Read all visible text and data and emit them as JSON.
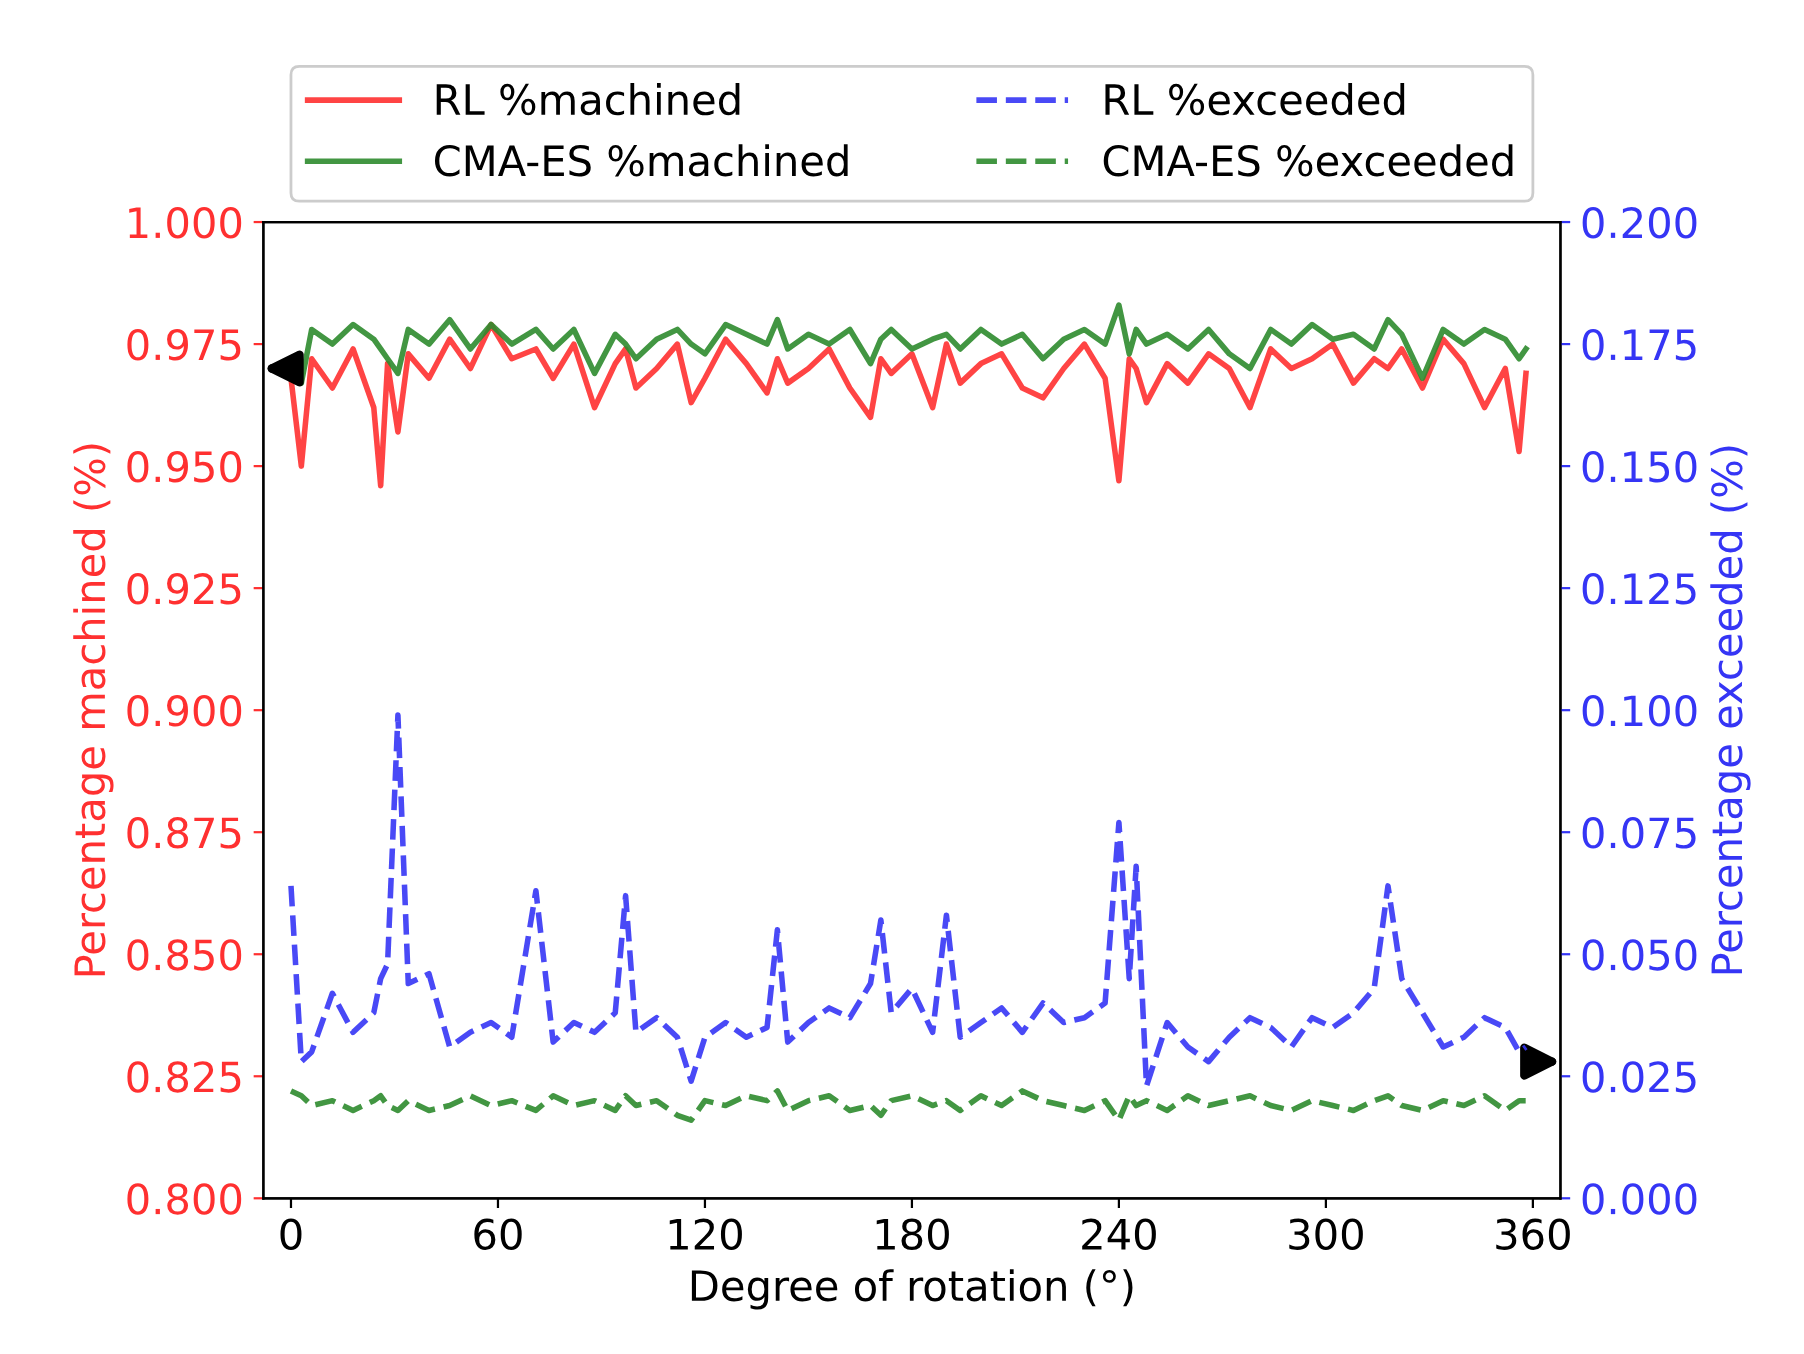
{
  "chart_data": {
    "type": "line",
    "xlabel": "Degree of rotation (°)",
    "ylabel": "Percentage machined (%)",
    "y2label": "Percentage exceeded (%)",
    "x": [
      0,
      3,
      6,
      12,
      18,
      24,
      26,
      28,
      31,
      34,
      40,
      46,
      52,
      58,
      64,
      71,
      76,
      82,
      88,
      94,
      97,
      100,
      106,
      112,
      116,
      120,
      126,
      132,
      138,
      141,
      144,
      150,
      156,
      162,
      168,
      171,
      174,
      180,
      186,
      190,
      194,
      200,
      206,
      212,
      218,
      224,
      230,
      236,
      240,
      243,
      245,
      248,
      254,
      260,
      266,
      272,
      278,
      284,
      290,
      296,
      302,
      308,
      314,
      318,
      322,
      328,
      334,
      340,
      346,
      352,
      356,
      358
    ],
    "xlim": [
      -8,
      368
    ],
    "xticks": [
      0,
      60,
      120,
      180,
      240,
      300,
      360
    ],
    "ylim": [
      0.8,
      1.0
    ],
    "yticks": [
      {
        "value": 0.8,
        "label": "0.800"
      },
      {
        "value": 0.825,
        "label": "0.825"
      },
      {
        "value": 0.85,
        "label": "0.850"
      },
      {
        "value": 0.875,
        "label": "0.875"
      },
      {
        "value": 0.9,
        "label": "0.900"
      },
      {
        "value": 0.925,
        "label": "0.925"
      },
      {
        "value": 0.95,
        "label": "0.950"
      },
      {
        "value": 0.975,
        "label": "0.975"
      },
      {
        "value": 1.0,
        "label": "1.000"
      }
    ],
    "y2lim": [
      0,
      0.2
    ],
    "y2ticks": [
      {
        "value": 0,
        "label": "0.000"
      },
      {
        "value": 0.025,
        "label": "0.025"
      },
      {
        "value": 0.05,
        "label": "0.050"
      },
      {
        "value": 0.075,
        "label": "0.075"
      },
      {
        "value": 0.1,
        "label": "0.100"
      },
      {
        "value": 0.125,
        "label": "0.125"
      },
      {
        "value": 0.15,
        "label": "0.150"
      },
      {
        "value": 0.175,
        "label": "0.175"
      },
      {
        "value": 0.2,
        "label": "0.200"
      }
    ],
    "legend": "top",
    "grid": false,
    "series": [
      {
        "name": "RL %machined",
        "color": "#ff3030",
        "line_style": "solid",
        "values": [
          0.968,
          0.95,
          0.972,
          0.966,
          0.974,
          0.962,
          0.946,
          0.971,
          0.957,
          0.973,
          0.968,
          0.976,
          0.97,
          0.979,
          0.972,
          0.974,
          0.968,
          0.975,
          0.962,
          0.971,
          0.974,
          0.966,
          0.97,
          0.975,
          0.963,
          0.968,
          0.976,
          0.971,
          0.965,
          0.972,
          0.967,
          0.97,
          0.974,
          0.966,
          0.96,
          0.972,
          0.969,
          0.973,
          0.962,
          0.975,
          0.967,
          0.971,
          0.973,
          0.966,
          0.964,
          0.97,
          0.975,
          0.968,
          0.947,
          0.972,
          0.97,
          0.963,
          0.971,
          0.967,
          0.973,
          0.97,
          0.962,
          0.974,
          0.97,
          0.972,
          0.975,
          0.967,
          0.972,
          0.97,
          0.974,
          0.966,
          0.976,
          0.971,
          0.962,
          0.97,
          0.953,
          0.969
        ]
      },
      {
        "name": "CMA-ES %machined",
        "color": "#2e8b2e",
        "line_style": "solid",
        "values": [
          0.972,
          0.967,
          0.978,
          0.975,
          0.979,
          0.976,
          0.974,
          0.972,
          0.969,
          0.978,
          0.975,
          0.98,
          0.974,
          0.979,
          0.975,
          0.978,
          0.974,
          0.978,
          0.969,
          0.977,
          0.975,
          0.972,
          0.976,
          0.978,
          0.975,
          0.973,
          0.979,
          0.977,
          0.975,
          0.98,
          0.974,
          0.977,
          0.975,
          0.978,
          0.971,
          0.976,
          0.978,
          0.974,
          0.976,
          0.977,
          0.974,
          0.978,
          0.975,
          0.977,
          0.972,
          0.976,
          0.978,
          0.975,
          0.983,
          0.973,
          0.978,
          0.975,
          0.977,
          0.974,
          0.978,
          0.973,
          0.97,
          0.978,
          0.975,
          0.979,
          0.976,
          0.977,
          0.974,
          0.98,
          0.977,
          0.968,
          0.978,
          0.975,
          0.978,
          0.976,
          0.972,
          0.974
        ]
      },
      {
        "name": "RL %exceeded",
        "color": "#3535f5",
        "line_style": "dashed",
        "axis": "y2",
        "values": [
          0.064,
          0.028,
          0.03,
          0.042,
          0.034,
          0.038,
          0.045,
          0.048,
          0.099,
          0.044,
          0.046,
          0.031,
          0.034,
          0.036,
          0.033,
          0.063,
          0.032,
          0.036,
          0.034,
          0.038,
          0.062,
          0.034,
          0.037,
          0.033,
          0.024,
          0.033,
          0.036,
          0.033,
          0.035,
          0.055,
          0.032,
          0.036,
          0.039,
          0.037,
          0.044,
          0.057,
          0.038,
          0.043,
          0.034,
          0.058,
          0.033,
          0.036,
          0.039,
          0.034,
          0.04,
          0.036,
          0.037,
          0.04,
          0.077,
          0.045,
          0.068,
          0.023,
          0.036,
          0.031,
          0.028,
          0.033,
          0.037,
          0.035,
          0.031,
          0.037,
          0.035,
          0.038,
          0.043,
          0.064,
          0.045,
          0.038,
          0.031,
          0.033,
          0.037,
          0.035,
          0.03,
          0.031
        ]
      },
      {
        "name": "CMA-ES %exceeded",
        "color": "#2e8b2e",
        "line_style": "dashed",
        "axis": "y2",
        "values": [
          0.022,
          0.021,
          0.019,
          0.02,
          0.018,
          0.02,
          0.021,
          0.019,
          0.018,
          0.02,
          0.018,
          0.019,
          0.021,
          0.019,
          0.02,
          0.018,
          0.021,
          0.019,
          0.02,
          0.018,
          0.021,
          0.019,
          0.02,
          0.017,
          0.016,
          0.02,
          0.019,
          0.021,
          0.02,
          0.022,
          0.018,
          0.02,
          0.021,
          0.018,
          0.019,
          0.017,
          0.02,
          0.021,
          0.019,
          0.02,
          0.018,
          0.021,
          0.019,
          0.022,
          0.02,
          0.019,
          0.018,
          0.02,
          0.016,
          0.021,
          0.019,
          0.02,
          0.018,
          0.021,
          0.019,
          0.02,
          0.021,
          0.019,
          0.018,
          0.02,
          0.019,
          0.018,
          0.02,
          0.021,
          0.019,
          0.018,
          0.02,
          0.019,
          0.021,
          0.018,
          0.02,
          0.02
        ]
      }
    ]
  }
}
